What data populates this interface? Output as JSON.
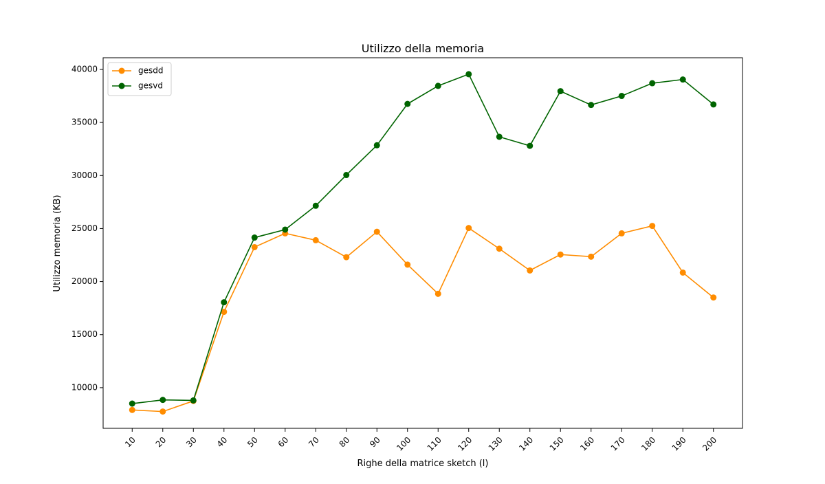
{
  "chart_data": {
    "type": "line",
    "title": "Utilizzo della memoria",
    "xlabel": "Righe della matrice sketch (l)",
    "ylabel": "Utilizzo memoria (KB)",
    "x": [
      10,
      20,
      30,
      40,
      50,
      60,
      70,
      80,
      90,
      100,
      110,
      120,
      130,
      140,
      150,
      160,
      170,
      180,
      190,
      200
    ],
    "x_tick_labels": [
      "10",
      "20",
      "30",
      "40",
      "50",
      "60",
      "70",
      "80",
      "90",
      "100",
      "110",
      "120",
      "130",
      "140",
      "150",
      "160",
      "170",
      "180",
      "190",
      "200"
    ],
    "y_ticks": [
      10000,
      15000,
      20000,
      25000,
      30000,
      35000,
      40000
    ],
    "y_tick_labels": [
      "10000",
      "15000",
      "20000",
      "25000",
      "30000",
      "35000",
      "40000"
    ],
    "xlim": [
      0.5,
      209.5
    ],
    "ylim": [
      6170,
      41100
    ],
    "grid": false,
    "legend_position": "upper-left",
    "x_tick_rotation_deg": 45,
    "series": [
      {
        "name": "gesdd",
        "color": "#ff8c00",
        "marker": "circle",
        "values": [
          7900,
          7750,
          8750,
          17150,
          23250,
          24550,
          23900,
          22300,
          24700,
          21600,
          18850,
          25050,
          23100,
          21050,
          22550,
          22350,
          24550,
          25250,
          20850,
          18500
        ]
      },
      {
        "name": "gesvd",
        "color": "#006400",
        "marker": "circle",
        "values": [
          8500,
          8850,
          8800,
          18050,
          24150,
          24900,
          27150,
          30050,
          32850,
          36750,
          38450,
          39550,
          33650,
          32800,
          37950,
          36650,
          37500,
          38700,
          39050,
          36700
        ]
      }
    ]
  }
}
